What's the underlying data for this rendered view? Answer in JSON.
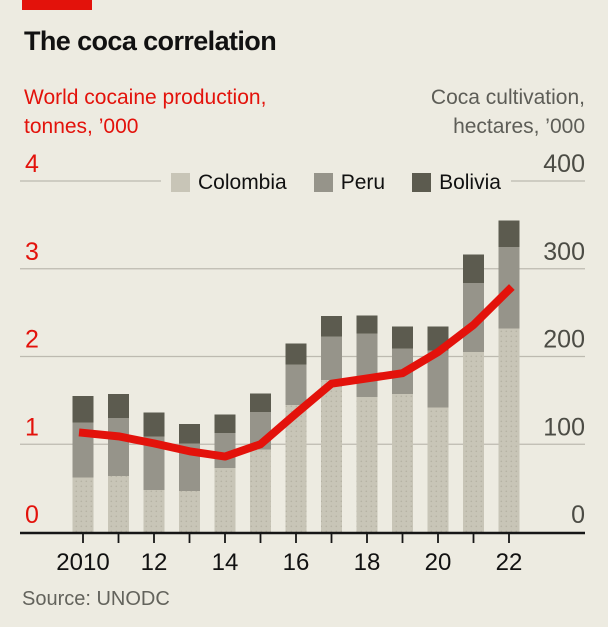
{
  "header": {
    "title": "The coca correlation",
    "left_subtitle_line1": "World cocaine production,",
    "left_subtitle_line2": "tonnes, ’000",
    "right_subtitle_line1": "Coca cultivation,",
    "right_subtitle_line2": "hectares, ’000"
  },
  "source": "Source: UNODC",
  "colors": {
    "background": "#edebe1",
    "red": "#e3120b",
    "colombia": "#c8c5b7",
    "colombia_dot": "#b5b2a3",
    "peru": "#96948a",
    "bolivia": "#5c5b4f",
    "grid": "#bdbab0",
    "axis": "#161616",
    "axis_text_right": "#4c4c45",
    "text_dark": "#111111",
    "text_gray": "#5d5d57",
    "source_gray": "#63635c"
  },
  "chart_data": {
    "type": "bar",
    "subtype": "stacked-bars-with-line-overlay",
    "title": "The coca correlation",
    "categories": [
      2010,
      2011,
      2012,
      2013,
      2014,
      2015,
      2016,
      2017,
      2018,
      2019,
      2020,
      2021,
      2022
    ],
    "x_tick_labels": [
      "2010",
      "",
      "12",
      "",
      "14",
      "",
      "16",
      "",
      "18",
      "",
      "20",
      "",
      "22"
    ],
    "series": [
      {
        "name": "Colombia",
        "unit": "hectares '000",
        "values": [
          62,
          64,
          48,
          47,
          73,
          94,
          145,
          173,
          154,
          157,
          142,
          205,
          232
        ]
      },
      {
        "name": "Peru",
        "unit": "hectares '000",
        "values": [
          63,
          66,
          61,
          54,
          40,
          43,
          46,
          50,
          72,
          52,
          65,
          79,
          93
        ]
      },
      {
        "name": "Bolivia",
        "unit": "hectares '000",
        "values": [
          30,
          27,
          27,
          22,
          21,
          21,
          24,
          23,
          21,
          25,
          27,
          32,
          30
        ]
      }
    ],
    "line_series": {
      "name": "World cocaine production, tonnes, ’000",
      "axis": "left",
      "values": [
        1.13,
        1.09,
        1.01,
        0.92,
        0.86,
        1.0,
        1.35,
        1.69,
        1.75,
        1.81,
        2.05,
        2.36,
        2.76
      ]
    },
    "left_axis": {
      "title": "World cocaine production, tonnes, ’000",
      "ticks": [
        0,
        1,
        2,
        3,
        4
      ],
      "range": [
        0,
        4
      ]
    },
    "right_axis": {
      "title": "Coca cultivation, hectares, ’000",
      "ticks": [
        0,
        100,
        200,
        300,
        400
      ],
      "range": [
        0,
        400
      ]
    },
    "grid": true,
    "legend_position": "top"
  }
}
